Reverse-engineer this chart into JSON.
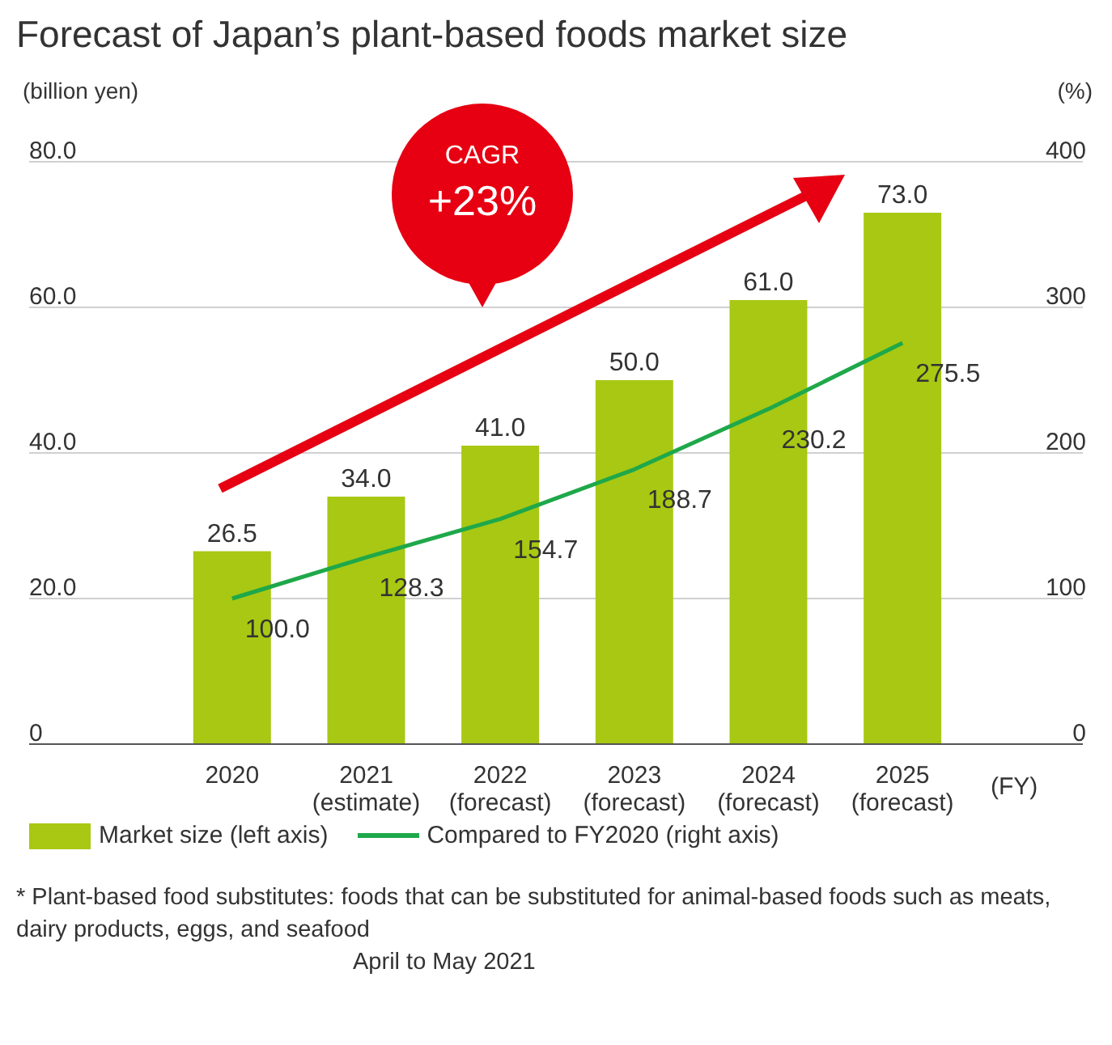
{
  "chart_data": {
    "type": "bar",
    "title": "Forecast of Japan’s plant-based foods market size",
    "ylabel": "(billion yen)",
    "y2label": "(%)",
    "xlabel": "(FY)",
    "categories": [
      "2020",
      "2021\n(estimate)",
      "2022\n(forecast)",
      "2023\n(forecast)",
      "2024\n(forecast)",
      "2025\n(forecast)"
    ],
    "series": [
      {
        "name": "Market size (left axis)",
        "color": "#a8c813",
        "values": [
          26.5,
          34.0,
          41.0,
          50.0,
          61.0,
          73.0
        ],
        "value_labels": [
          "26.5",
          "34.0",
          "41.0",
          "50.0",
          "61.0",
          "73.0"
        ]
      },
      {
        "name": "Compared to FY2020 (right axis)",
        "type": "line",
        "axis": "y2",
        "color": "#1fa84a",
        "values": [
          100.0,
          128.3,
          154.7,
          188.7,
          230.2,
          275.5
        ],
        "value_labels": [
          "100.0",
          "128.3",
          "154.7",
          "188.7",
          "230.2",
          "275.5"
        ]
      }
    ],
    "ylim": [
      0,
      80
    ],
    "yticks": [
      {
        "value": 0,
        "label": "0"
      },
      {
        "value": 20,
        "label": "20.0"
      },
      {
        "value": 40,
        "label": "40.0"
      },
      {
        "value": 60,
        "label": "60.0"
      },
      {
        "value": 80,
        "label": "80.0"
      }
    ],
    "y2lim": [
      0,
      400
    ],
    "y2ticks": [
      0,
      100,
      200,
      300,
      400
    ],
    "grid": "y",
    "legend": "bottom",
    "marker": "none",
    "line_style": "solid",
    "annotations": [
      "CAGR\n+23%",
      "* Plant-based food substitutes: foods that can be substituted for animal-based foods such as meats, dairy products, eggs, and seafood",
      "April to May 2021"
    ]
  }
}
